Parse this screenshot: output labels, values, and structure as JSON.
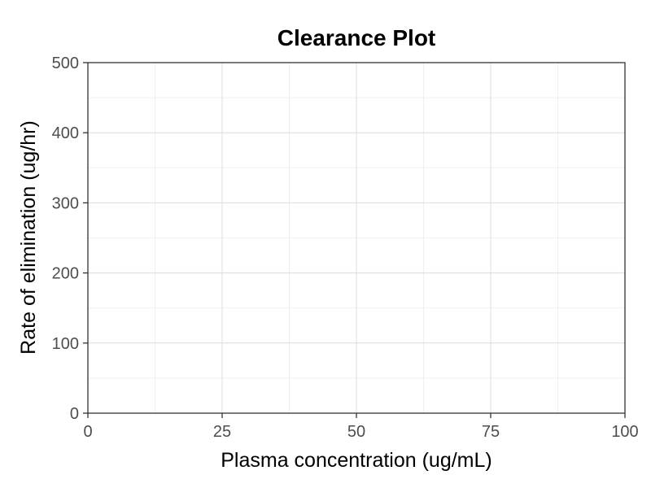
{
  "chart_data": {
    "type": "scatter",
    "title": "Clearance Plot",
    "xlabel": "Plasma concentration (ug/mL)",
    "ylabel": "Rate of elimination (ug/hr)",
    "xlim": [
      0,
      100
    ],
    "ylim": [
      0,
      500
    ],
    "x_ticks": [
      "0",
      "25",
      "50",
      "75",
      "100"
    ],
    "y_ticks": [
      "0",
      "100",
      "200",
      "300",
      "400",
      "500"
    ],
    "grid": true,
    "series": []
  },
  "colors": {
    "grid_major": "#dcdcdc",
    "grid_minor": "#efefef",
    "axis": "#333333",
    "background": "#ffffff"
  }
}
